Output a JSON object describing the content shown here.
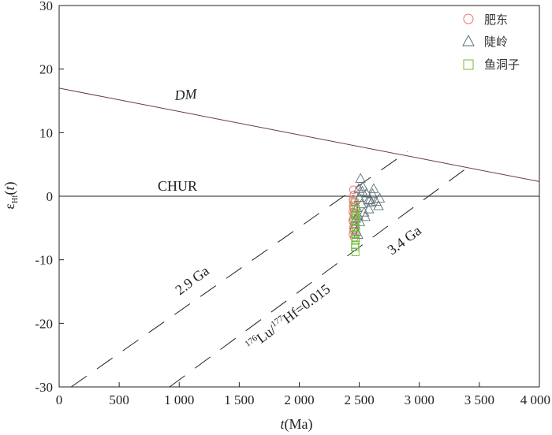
{
  "chart_data": {
    "type": "scatter",
    "xlabel": {
      "italic": "t",
      "rest": "(Ma)"
    },
    "ylabel": {
      "prefix": "ε",
      "sub": "Hf",
      "open": "(",
      "italic": "t",
      "close": ")"
    },
    "xlim": [
      0,
      4000
    ],
    "ylim": [
      -30,
      30
    ],
    "xticks": [
      0,
      500,
      1000,
      1500,
      2000,
      2500,
      3000,
      3500,
      4000
    ],
    "xtick_labels": [
      "0",
      "500",
      "1 000",
      "1 500",
      "2 000",
      "2 500",
      "3 000",
      "3 500",
      "4 000"
    ],
    "yticks": [
      -30,
      -20,
      -10,
      0,
      10,
      20,
      30
    ],
    "ytick_labels": [
      "-30",
      "-20",
      "-10",
      "0",
      "10",
      "20",
      "30"
    ],
    "reference_lines": [
      {
        "label": "DM",
        "points": [
          [
            0,
            17
          ],
          [
            4000,
            2.3
          ]
        ],
        "color": "#6b3a3a"
      },
      {
        "label": "CHUR",
        "points": [
          [
            0,
            0
          ],
          [
            4000,
            0
          ]
        ],
        "color": "#222222"
      }
    ],
    "evolution_lines": [
      {
        "label": "2.9 Ga",
        "points": [
          [
            100,
            -30
          ],
          [
            2900,
            7
          ]
        ]
      },
      {
        "label": "3.4 Ga",
        "points": [
          [
            920,
            -30
          ],
          [
            3400,
            4.5
          ]
        ]
      }
    ],
    "annotations": {
      "dm": "DM",
      "chur": "CHUR",
      "ga29": "2.9 Ga",
      "ga34": "3.4 Ga",
      "lu_hf": {
        "sup1": "176",
        "t1": "Lu/",
        "sup2": "177",
        "t2": "Hf=0.015"
      }
    },
    "legend_position": "top-right",
    "series": [
      {
        "name": "肥东",
        "marker": "circle",
        "color": "#e8736f",
        "points": [
          [
            2452,
            1.0
          ],
          [
            2456,
            0.2
          ],
          [
            2448,
            -0.5
          ],
          [
            2458,
            -1.0
          ],
          [
            2450,
            -1.5
          ],
          [
            2455,
            -2.0
          ],
          [
            2447,
            -2.5
          ],
          [
            2460,
            -3.0
          ],
          [
            2452,
            -3.5
          ],
          [
            2449,
            -4.0
          ],
          [
            2457,
            -4.5
          ],
          [
            2451,
            -5.0
          ],
          [
            2454,
            -5.5
          ],
          [
            2448,
            -6.0
          ],
          [
            2458,
            -6.5
          ],
          [
            2450,
            -0.8
          ],
          [
            2455,
            -2.8
          ],
          [
            2446,
            -3.8
          ],
          [
            2459,
            -5.2
          ],
          [
            2453,
            -1.8
          ]
        ]
      },
      {
        "name": "陡岭",
        "marker": "triangle",
        "color": "#5d7178",
        "points": [
          [
            2510,
            2.8
          ],
          [
            2530,
            1.5
          ],
          [
            2560,
            0.5
          ],
          [
            2590,
            -0.5
          ],
          [
            2620,
            1.2
          ],
          [
            2640,
            -0.8
          ],
          [
            2660,
            -1.5
          ],
          [
            2600,
            -1.0
          ],
          [
            2580,
            -2.0
          ],
          [
            2540,
            -2.5
          ],
          [
            2520,
            -1.2
          ],
          [
            2500,
            -0.2
          ],
          [
            2490,
            -3.0
          ],
          [
            2470,
            -3.5
          ],
          [
            2480,
            -1.8
          ],
          [
            2465,
            -4.5
          ],
          [
            2475,
            -5.5
          ],
          [
            2490,
            -6.0
          ],
          [
            2505,
            -4.0
          ],
          [
            2550,
            -3.2
          ],
          [
            2610,
            0.4
          ],
          [
            2575,
            -0.6
          ],
          [
            2525,
            0.8
          ],
          [
            2495,
            1.2
          ],
          [
            2670,
            -0.3
          ]
        ]
      },
      {
        "name": "鱼洞子",
        "marker": "square",
        "color": "#6fbf3a",
        "points": [
          [
            2465,
            -1.0
          ],
          [
            2470,
            -2.0
          ],
          [
            2462,
            -3.0
          ],
          [
            2468,
            -4.0
          ],
          [
            2472,
            -5.0
          ],
          [
            2466,
            -6.0
          ],
          [
            2470,
            -7.0
          ],
          [
            2464,
            -8.0
          ],
          [
            2468,
            -8.8
          ],
          [
            2472,
            -2.6
          ],
          [
            2463,
            -4.6
          ],
          [
            2469,
            -6.6
          ],
          [
            2466,
            -7.6
          ],
          [
            2471,
            -3.4
          ]
        ]
      }
    ]
  }
}
